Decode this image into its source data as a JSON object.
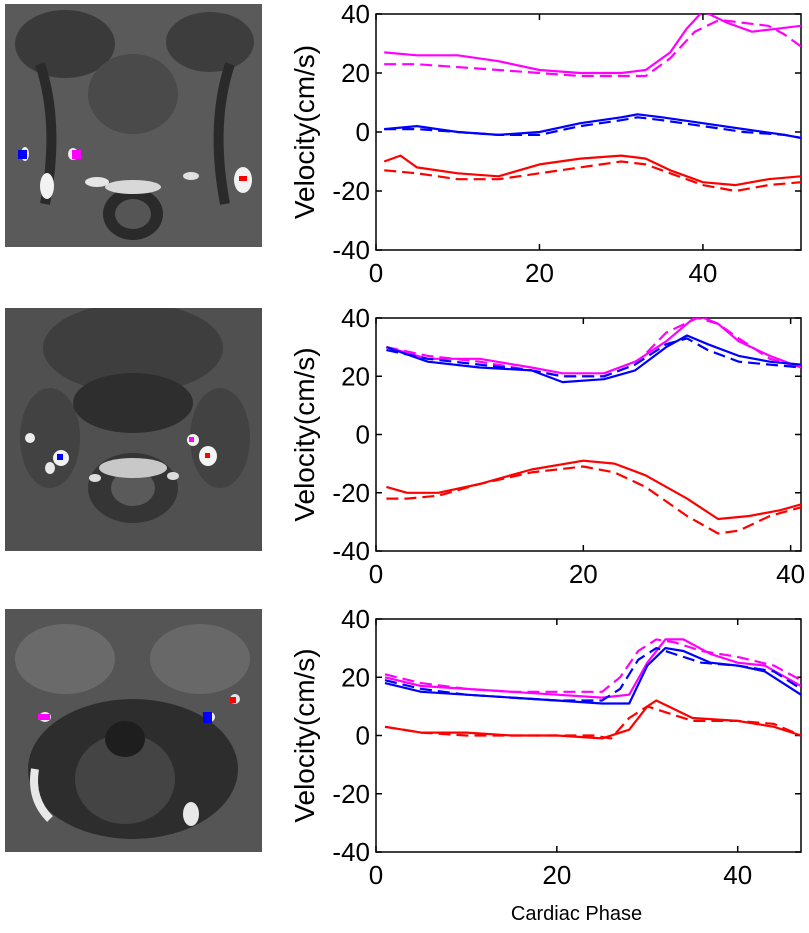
{
  "colors": {
    "magenta": "#ff00ff",
    "blue": "#0000ff",
    "red": "#ff0000",
    "background": "#ffffff"
  },
  "mri_images": [
    {
      "name": "mri-slice-upper-neck",
      "markers": [
        "blue",
        "magenta",
        "red"
      ]
    },
    {
      "name": "mri-slice-mid-neck",
      "markers": [
        "blue",
        "magenta",
        "red"
      ]
    },
    {
      "name": "mri-slice-lower-neck",
      "markers": [
        "magenta",
        "blue",
        "red"
      ]
    }
  ],
  "chart_data": [
    {
      "type": "line",
      "title": "",
      "xlabel": "",
      "ylabel": "Velocity(cm/s)",
      "xlim": [
        0,
        52
      ],
      "ylim": [
        -40,
        40
      ],
      "xticks": [
        0,
        20,
        40
      ],
      "yticks": [
        -40,
        -20,
        0,
        20,
        40
      ],
      "series": [
        {
          "name": "magenta solid",
          "color": "magenta",
          "style": "solid",
          "x": [
            1,
            5,
            10,
            15,
            20,
            25,
            30,
            33,
            36,
            38,
            40,
            43,
            46,
            49,
            52
          ],
          "y": [
            27,
            26,
            26,
            24,
            21,
            20,
            20,
            21,
            27,
            35,
            41,
            37,
            34,
            35,
            36
          ]
        },
        {
          "name": "magenta dashed",
          "color": "magenta",
          "style": "dashed",
          "x": [
            1,
            5,
            10,
            15,
            20,
            25,
            30,
            33,
            36,
            39,
            42,
            45,
            48,
            50,
            52
          ],
          "y": [
            23,
            23,
            22,
            21,
            20,
            19,
            19,
            19,
            25,
            34,
            38,
            37,
            36,
            33,
            29
          ]
        },
        {
          "name": "blue solid",
          "color": "blue",
          "style": "solid",
          "x": [
            1,
            5,
            10,
            15,
            20,
            25,
            30,
            32,
            35,
            40,
            45,
            50,
            52
          ],
          "y": [
            1,
            2,
            0,
            -1,
            0,
            3,
            5,
            6,
            5,
            3,
            1,
            -1,
            -2
          ]
        },
        {
          "name": "blue dashed",
          "color": "blue",
          "style": "dashed",
          "x": [
            1,
            5,
            10,
            15,
            20,
            25,
            30,
            32,
            35,
            40,
            45,
            50,
            52
          ],
          "y": [
            1,
            1,
            0,
            -1,
            -1,
            2,
            4,
            5,
            4,
            2,
            0,
            -1,
            -2
          ]
        },
        {
          "name": "red solid",
          "color": "red",
          "style": "solid",
          "x": [
            1,
            3,
            5,
            10,
            15,
            20,
            25,
            30,
            33,
            36,
            40,
            44,
            48,
            52
          ],
          "y": [
            -10,
            -8,
            -12,
            -14,
            -15,
            -11,
            -9,
            -8,
            -9,
            -13,
            -17,
            -18,
            -16,
            -15
          ]
        },
        {
          "name": "red dashed",
          "color": "red",
          "style": "dashed",
          "x": [
            1,
            5,
            10,
            15,
            20,
            25,
            30,
            33,
            36,
            40,
            44,
            48,
            52
          ],
          "y": [
            -13,
            -14,
            -16,
            -16,
            -14,
            -12,
            -10,
            -11,
            -14,
            -18,
            -20,
            -18,
            -17
          ]
        }
      ]
    },
    {
      "type": "line",
      "title": "",
      "xlabel": "",
      "ylabel": "Velocity(cm/s)",
      "xlim": [
        0,
        41
      ],
      "ylim": [
        -40,
        40
      ],
      "xticks": [
        0,
        20,
        40
      ],
      "yticks": [
        -40,
        -20,
        0,
        20,
        40
      ],
      "series": [
        {
          "name": "magenta solid",
          "color": "magenta",
          "style": "solid",
          "x": [
            1,
            5,
            10,
            15,
            18,
            22,
            25,
            28,
            31,
            33,
            35,
            38,
            41
          ],
          "y": [
            30,
            26,
            26,
            23,
            21,
            21,
            25,
            32,
            41,
            38,
            32,
            27,
            23
          ]
        },
        {
          "name": "magenta dashed",
          "color": "magenta",
          "style": "dashed",
          "x": [
            1,
            5,
            10,
            15,
            18,
            22,
            25,
            28,
            31,
            33,
            35,
            38,
            41
          ],
          "y": [
            30,
            27,
            25,
            22,
            20,
            20,
            24,
            35,
            40,
            38,
            33,
            26,
            23
          ]
        },
        {
          "name": "blue solid",
          "color": "blue",
          "style": "solid",
          "x": [
            1,
            5,
            10,
            15,
            18,
            22,
            25,
            28,
            30,
            32,
            35,
            38,
            41
          ],
          "y": [
            30,
            25,
            23,
            22,
            18,
            19,
            22,
            30,
            34,
            31,
            27,
            25,
            24
          ]
        },
        {
          "name": "blue dashed",
          "color": "blue",
          "style": "dashed",
          "x": [
            1,
            5,
            10,
            15,
            18,
            22,
            25,
            28,
            30,
            32,
            35,
            38,
            41
          ],
          "y": [
            29,
            26,
            24,
            22,
            20,
            20,
            24,
            31,
            33,
            29,
            25,
            24,
            23
          ]
        },
        {
          "name": "red solid",
          "color": "red",
          "style": "solid",
          "x": [
            1,
            3,
            6,
            10,
            15,
            20,
            23,
            26,
            30,
            33,
            36,
            39,
            41
          ],
          "y": [
            -18,
            -20,
            -20,
            -17,
            -12,
            -9,
            -10,
            -14,
            -22,
            -29,
            -28,
            -26,
            -24
          ]
        },
        {
          "name": "red dashed",
          "color": "red",
          "style": "dashed",
          "x": [
            1,
            3,
            6,
            10,
            15,
            20,
            23,
            26,
            30,
            33,
            35,
            38,
            41
          ],
          "y": [
            -22,
            -22,
            -21,
            -17,
            -13,
            -11,
            -13,
            -18,
            -28,
            -34,
            -33,
            -28,
            -25
          ]
        }
      ]
    },
    {
      "type": "line",
      "title": "",
      "xlabel": "Cardiac Phase",
      "ylabel": "Velocity(cm/s)",
      "xlim": [
        0,
        47
      ],
      "ylim": [
        -40,
        40
      ],
      "xticks": [
        0,
        20,
        40
      ],
      "yticks": [
        -40,
        -20,
        0,
        20,
        40
      ],
      "series": [
        {
          "name": "magenta solid",
          "color": "magenta",
          "style": "solid",
          "x": [
            1,
            5,
            10,
            15,
            20,
            25,
            28,
            30,
            32,
            34,
            37,
            40,
            43,
            47
          ],
          "y": [
            20,
            17,
            16,
            15,
            14,
            13,
            14,
            25,
            33,
            33,
            28,
            25,
            24,
            17
          ]
        },
        {
          "name": "magenta dashed",
          "color": "magenta",
          "style": "dashed",
          "x": [
            1,
            5,
            10,
            15,
            20,
            25,
            27,
            29,
            31,
            33,
            36,
            40,
            44,
            47
          ],
          "y": [
            21,
            18,
            16,
            15,
            15,
            15,
            20,
            29,
            33,
            32,
            29,
            27,
            24,
            19
          ]
        },
        {
          "name": "blue solid",
          "color": "blue",
          "style": "solid",
          "x": [
            1,
            5,
            10,
            15,
            20,
            25,
            28,
            30,
            32,
            34,
            37,
            40,
            43,
            47
          ],
          "y": [
            18,
            15,
            14,
            13,
            12,
            11,
            11,
            24,
            30,
            29,
            25,
            24,
            22,
            14
          ]
        },
        {
          "name": "blue dashed",
          "color": "blue",
          "style": "dashed",
          "x": [
            1,
            5,
            10,
            15,
            20,
            25,
            27,
            29,
            31,
            33,
            36,
            40,
            44,
            47
          ],
          "y": [
            19,
            16,
            14,
            13,
            12,
            12,
            16,
            26,
            30,
            28,
            25,
            24,
            22,
            16
          ]
        },
        {
          "name": "red solid",
          "color": "red",
          "style": "solid",
          "x": [
            1,
            5,
            10,
            15,
            20,
            25,
            28,
            30,
            31,
            33,
            35,
            40,
            44,
            47
          ],
          "y": [
            3,
            1,
            1,
            0,
            0,
            -1,
            2,
            10,
            12,
            9,
            6,
            5,
            3,
            0
          ]
        },
        {
          "name": "red dashed",
          "color": "red",
          "style": "dashed",
          "x": [
            1,
            5,
            10,
            15,
            20,
            24,
            26,
            28,
            30,
            32,
            35,
            40,
            44,
            47
          ],
          "y": [
            3,
            1,
            0,
            0,
            0,
            0,
            -1,
            6,
            10,
            8,
            5,
            5,
            4,
            0
          ]
        }
      ]
    }
  ]
}
